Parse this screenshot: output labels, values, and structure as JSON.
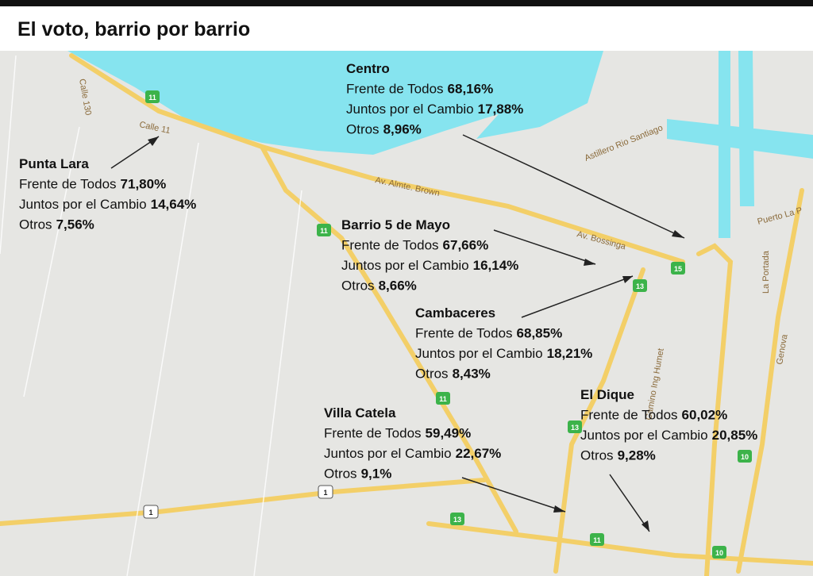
{
  "header": {
    "title": "El voto, barrio por barrio"
  },
  "regions": [
    {
      "name": "Centro",
      "lines": [
        {
          "party": "Frente de Todos",
          "pct": "68,16%"
        },
        {
          "party": "Juntos por el Cambio",
          "pct": "17,88%"
        },
        {
          "party": "Otros",
          "pct": "8,96%"
        }
      ]
    },
    {
      "name": "Punta Lara",
      "lines": [
        {
          "party": "Frente de Todos",
          "pct": "71,80%"
        },
        {
          "party": "Juntos por el Cambio",
          "pct": "14,64%"
        },
        {
          "party": "Otros",
          "pct": "7,56%"
        }
      ]
    },
    {
      "name": "Barrio 5 de Mayo",
      "lines": [
        {
          "party": "Frente de Todos",
          "pct": "67,66%"
        },
        {
          "party": "Juntos por el Cambio",
          "pct": "16,14%"
        },
        {
          "party": "Otros",
          "pct": "8,66%"
        }
      ]
    },
    {
      "name": "Cambaceres",
      "lines": [
        {
          "party": "Frente de Todos",
          "pct": "68,85%"
        },
        {
          "party": "Juntos por el Cambio",
          "pct": "18,21%"
        },
        {
          "party": "Otros",
          "pct": "8,43%"
        }
      ]
    },
    {
      "name": "El Dique",
      "lines": [
        {
          "party": "Frente de Todos",
          "pct": "60,02%"
        },
        {
          "party": "Juntos por el Cambio",
          "pct": "20,85%"
        },
        {
          "party": "Otros",
          "pct": "9,28%"
        }
      ]
    },
    {
      "name": "Villa Catela",
      "lines": [
        {
          "party": "Frente de Todos",
          "pct": "59,49%"
        },
        {
          "party": "Juntos por el Cambio",
          "pct": "22,67%"
        },
        {
          "party": "Otros",
          "pct": "9,1%"
        }
      ]
    }
  ],
  "map_labels": [
    "Av. Almte. Brown",
    "Av. Bossinga",
    "Astillero Rio Santiago",
    "Puerto La P",
    "Calle 130",
    "Calle 11",
    "Camino Ing Humet",
    "Genova",
    "La Portada"
  ],
  "route_shields": [
    "11",
    "11",
    "11",
    "13",
    "15",
    "13",
    "13",
    "11",
    "10",
    "10",
    "1",
    "1"
  ]
}
